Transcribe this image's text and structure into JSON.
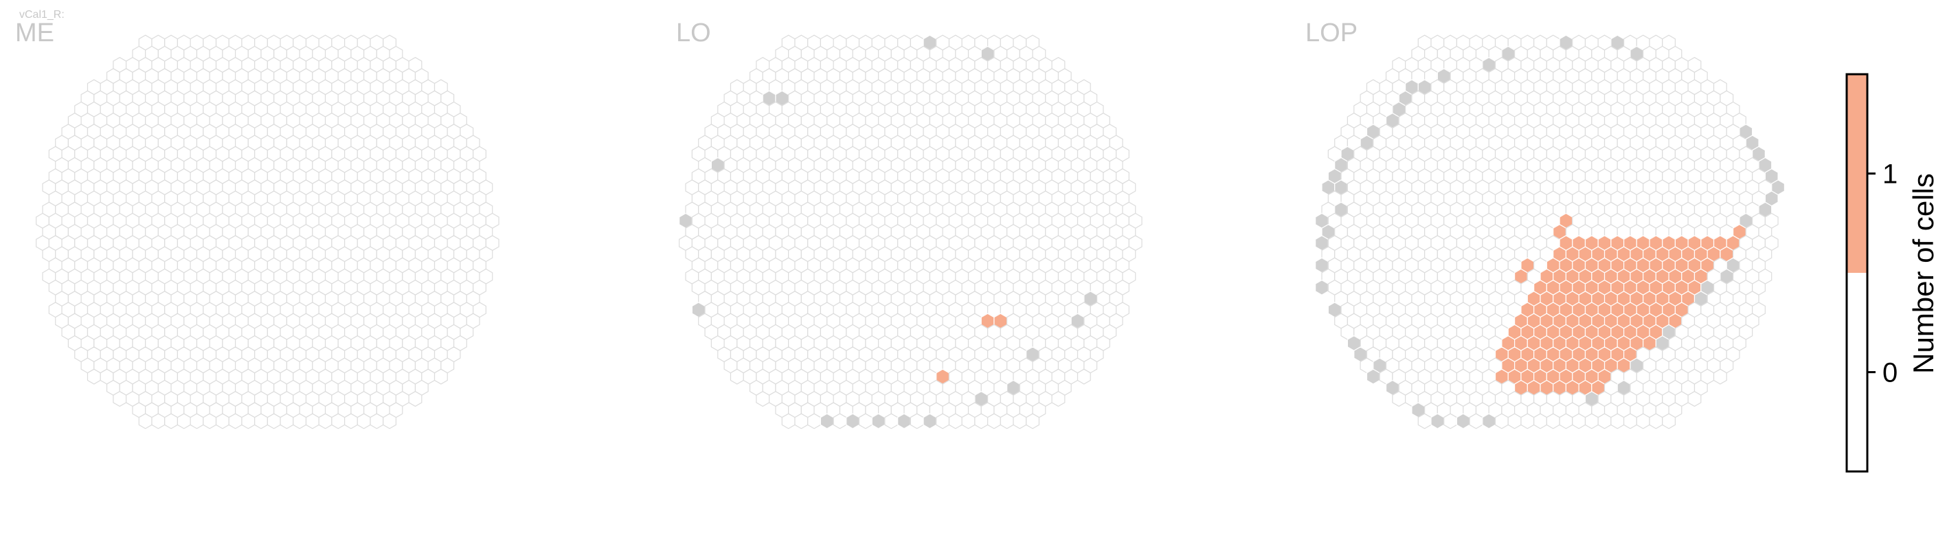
{
  "figure": {
    "cell_type": "vCal1_R:",
    "panels": [
      {
        "label": "ME"
      },
      {
        "label": "LO"
      },
      {
        "label": "LOP"
      }
    ]
  },
  "colors": {
    "outline": "#dcdcdc",
    "zero_fill": "#ffffff",
    "no_data_fill": "#d0d0d0",
    "one_fill": "#f7ab8c",
    "label_gray": "#c8c8c8",
    "colorbar_border": "#000000"
  },
  "chart_data": {
    "type": "heatmap",
    "description_units": "hex columns (q) and rows (r) on each eye-map panel",
    "panels": [
      {
        "name": "ME",
        "colored_cells": [],
        "no_data_cells": []
      },
      {
        "name": "LO",
        "colored_cells": [
          {
            "q": 23,
            "r": 25,
            "value": 1
          },
          {
            "q": 24,
            "r": 25,
            "value": 1
          },
          {
            "q": 20,
            "r": 30,
            "value": 1
          }
        ],
        "no_data_cells": [
          {
            "q": 19,
            "r": 0
          },
          {
            "q": 23,
            "r": 1
          },
          {
            "q": 6,
            "r": 5
          },
          {
            "q": 7,
            "r": 5
          },
          {
            "q": 2,
            "r": 11
          },
          {
            "q": 0,
            "r": 16
          },
          {
            "q": 1,
            "r": 24
          },
          {
            "q": 31,
            "r": 23
          },
          {
            "q": 30,
            "r": 25
          },
          {
            "q": 27,
            "r": 28
          },
          {
            "q": 25,
            "r": 31
          },
          {
            "q": 23,
            "r": 32
          },
          {
            "q": 11,
            "r": 34
          },
          {
            "q": 13,
            "r": 34
          },
          {
            "q": 15,
            "r": 34
          },
          {
            "q": 17,
            "r": 34
          },
          {
            "q": 19,
            "r": 34
          }
        ]
      },
      {
        "name": "LOP",
        "colored_cells_rows": [
          {
            "r": 18,
            "from": 19,
            "to": 31
          },
          {
            "r": 19,
            "from": 18,
            "to": 30
          },
          {
            "r": 20,
            "from": 18,
            "to": 30
          },
          {
            "r": 21,
            "from": 17,
            "to": 29
          },
          {
            "r": 22,
            "from": 17,
            "to": 29
          },
          {
            "r": 23,
            "from": 16,
            "to": 28
          },
          {
            "r": 24,
            "from": 16,
            "to": 28
          },
          {
            "r": 25,
            "from": 15,
            "to": 27
          },
          {
            "r": 26,
            "from": 15,
            "to": 26
          },
          {
            "r": 27,
            "from": 14,
            "to": 25
          },
          {
            "r": 28,
            "from": 14,
            "to": 24
          },
          {
            "r": 29,
            "from": 14,
            "to": 23
          },
          {
            "r": 30,
            "from": 14,
            "to": 22
          },
          {
            "r": 31,
            "from": 15,
            "to": 21
          }
        ],
        "colored_cells": [
          {
            "q": 19,
            "r": 16,
            "value": 1
          },
          {
            "q": 18,
            "r": 17,
            "value": 1
          },
          {
            "q": 16,
            "r": 20,
            "value": 1
          },
          {
            "q": 15,
            "r": 21,
            "value": 1
          },
          {
            "q": 32,
            "r": 17,
            "value": 1
          },
          {
            "q": 32,
            "r": 18,
            "value": 1
          },
          {
            "q": 31,
            "r": 19,
            "value": 1
          }
        ],
        "no_data_cells": [
          {
            "q": 19,
            "r": 0
          },
          {
            "q": 23,
            "r": 0
          },
          {
            "q": 24,
            "r": 1
          },
          {
            "q": 14,
            "r": 1
          },
          {
            "q": 13,
            "r": 2
          },
          {
            "q": 9,
            "r": 3
          },
          {
            "q": 8,
            "r": 4
          },
          {
            "q": 7,
            "r": 4
          },
          {
            "q": 6,
            "r": 5
          },
          {
            "q": 6,
            "r": 6
          },
          {
            "q": 5,
            "r": 7
          },
          {
            "q": 4,
            "r": 8
          },
          {
            "q": 3,
            "r": 9
          },
          {
            "q": 2,
            "r": 10
          },
          {
            "q": 1,
            "r": 11
          },
          {
            "q": 1,
            "r": 12
          },
          {
            "q": 0,
            "r": 13
          },
          {
            "q": 1,
            "r": 13
          },
          {
            "q": 1,
            "r": 15
          },
          {
            "q": 0,
            "r": 16
          },
          {
            "q": 0,
            "r": 17
          },
          {
            "q": 0,
            "r": 18
          },
          {
            "q": 0,
            "r": 20
          },
          {
            "q": 0,
            "r": 22
          },
          {
            "q": 1,
            "r": 24
          },
          {
            "q": 2,
            "r": 27
          },
          {
            "q": 3,
            "r": 28
          },
          {
            "q": 4,
            "r": 29
          },
          {
            "q": 4,
            "r": 30
          },
          {
            "q": 5,
            "r": 31
          },
          {
            "q": 7,
            "r": 33
          },
          {
            "q": 9,
            "r": 34
          },
          {
            "q": 11,
            "r": 34
          },
          {
            "q": 13,
            "r": 34
          },
          {
            "q": 33,
            "r": 8
          },
          {
            "q": 33,
            "r": 9
          },
          {
            "q": 34,
            "r": 10
          },
          {
            "q": 34,
            "r": 11
          },
          {
            "q": 35,
            "r": 12
          },
          {
            "q": 35,
            "r": 13
          },
          {
            "q": 35,
            "r": 14
          },
          {
            "q": 34,
            "r": 15
          },
          {
            "q": 33,
            "r": 16
          },
          {
            "q": 32,
            "r": 20
          },
          {
            "q": 31,
            "r": 21
          },
          {
            "q": 30,
            "r": 22
          },
          {
            "q": 29,
            "r": 23
          },
          {
            "q": 28,
            "r": 24
          },
          {
            "q": 27,
            "r": 25
          },
          {
            "q": 27,
            "r": 26
          },
          {
            "q": 26,
            "r": 27
          },
          {
            "q": 24,
            "r": 29
          },
          {
            "q": 23,
            "r": 31
          },
          {
            "q": 21,
            "r": 32
          }
        ]
      }
    ],
    "colorbar": {
      "label": "Number of cells",
      "ticks": [
        0,
        1
      ],
      "range": [
        -0.5,
        1.5
      ],
      "segments": [
        {
          "from": -0.5,
          "to": 0.5,
          "color": "#ffffff"
        },
        {
          "from": 0.5,
          "to": 1.5,
          "color": "#f7ab8c"
        }
      ]
    }
  }
}
